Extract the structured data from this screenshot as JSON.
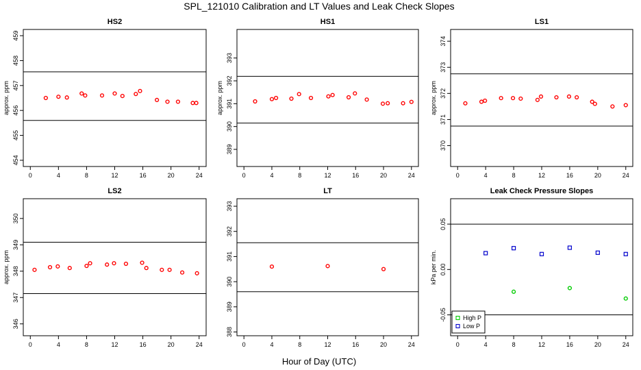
{
  "title": "SPL_121010  Calibration and LT Values and Leak Check Slopes",
  "xlabel": "Hour of Day (UTC)",
  "chart_data": [
    {
      "type": "scatter",
      "title": "HS2",
      "ylabel": "approx. ppm",
      "xlim": [
        -1,
        25
      ],
      "ylim": [
        453.75,
        459.25
      ],
      "xticks": [
        0,
        4,
        8,
        12,
        16,
        20,
        24
      ],
      "yticks": [
        454,
        455,
        456,
        457,
        458,
        459
      ],
      "hlines": [
        457.55,
        455.6
      ],
      "series": [
        {
          "color": "#ff0000",
          "marker": "circle",
          "x": [
            2.2,
            4.0,
            5.2,
            7.3,
            7.8,
            10.2,
            12.0,
            13.1,
            15.0,
            15.6,
            18.0,
            19.5,
            21.0,
            23.1,
            23.6
          ],
          "y": [
            456.5,
            456.55,
            456.52,
            456.68,
            456.6,
            456.6,
            456.68,
            456.58,
            456.66,
            456.78,
            456.42,
            456.35,
            456.35,
            456.3,
            456.3
          ]
        }
      ]
    },
    {
      "type": "scatter",
      "title": "HS1",
      "ylabel": "approx. ppm",
      "xlim": [
        -1,
        25
      ],
      "ylim": [
        388.25,
        394.25
      ],
      "xticks": [
        0,
        4,
        8,
        12,
        16,
        20,
        24
      ],
      "yticks": [
        389,
        390,
        391,
        392,
        393
      ],
      "hlines": [
        392.2,
        390.15
      ],
      "series": [
        {
          "color": "#ff0000",
          "marker": "circle",
          "x": [
            1.6,
            4.0,
            4.6,
            6.8,
            7.9,
            9.6,
            12.1,
            12.7,
            15.0,
            15.9,
            17.6,
            19.9,
            20.6,
            22.8,
            24.0
          ],
          "y": [
            391.1,
            391.2,
            391.25,
            391.22,
            391.42,
            391.25,
            391.32,
            391.38,
            391.28,
            391.45,
            391.18,
            391.0,
            391.02,
            391.02,
            391.08
          ]
        }
      ]
    },
    {
      "type": "scatter",
      "title": "LS1",
      "ylabel": "approx. ppm",
      "xlim": [
        -1,
        25
      ],
      "ylim": [
        369.2,
        374.45
      ],
      "xticks": [
        0,
        4,
        8,
        12,
        16,
        20,
        24
      ],
      "yticks": [
        370,
        371,
        372,
        373,
        374
      ],
      "hlines": [
        372.75,
        370.75
      ],
      "series": [
        {
          "color": "#ff0000",
          "marker": "circle",
          "x": [
            1.1,
            3.4,
            3.9,
            6.2,
            7.9,
            9.0,
            11.4,
            11.9,
            14.1,
            15.9,
            17.0,
            19.2,
            19.6,
            22.1,
            24.0
          ],
          "y": [
            371.62,
            371.68,
            371.72,
            371.82,
            371.82,
            371.8,
            371.75,
            371.88,
            371.85,
            371.88,
            371.85,
            371.68,
            371.6,
            371.5,
            371.55
          ]
        }
      ]
    },
    {
      "type": "scatter",
      "title": "LS2",
      "ylabel": "approx. ppm",
      "xlim": [
        -1,
        25
      ],
      "ylim": [
        345.55,
        350.75
      ],
      "xticks": [
        0,
        4,
        8,
        12,
        16,
        20,
        24
      ],
      "yticks": [
        346,
        347,
        348,
        349,
        350
      ],
      "hlines": [
        349.1,
        347.15
      ],
      "series": [
        {
          "color": "#ff0000",
          "marker": "circle",
          "x": [
            0.6,
            2.8,
            3.9,
            5.6,
            8.0,
            8.5,
            10.9,
            11.9,
            13.6,
            15.9,
            16.5,
            18.7,
            19.8,
            21.6,
            23.7
          ],
          "y": [
            348.05,
            348.15,
            348.18,
            348.12,
            348.2,
            348.3,
            348.25,
            348.3,
            348.28,
            348.32,
            348.12,
            348.05,
            348.05,
            347.95,
            347.92
          ]
        }
      ]
    },
    {
      "type": "scatter",
      "title": "LT",
      "ylabel": "",
      "xlim": [
        -1,
        25
      ],
      "ylim": [
        387.85,
        393.3
      ],
      "xticks": [
        0,
        4,
        8,
        12,
        16,
        20,
        24
      ],
      "yticks": [
        388,
        389,
        390,
        391,
        392,
        393
      ],
      "hlines": [
        391.55,
        389.6
      ],
      "series": [
        {
          "color": "#ff0000",
          "marker": "circle",
          "x": [
            4.0,
            12.0,
            20.0
          ],
          "y": [
            390.6,
            390.62,
            390.5
          ]
        }
      ]
    },
    {
      "type": "scatter",
      "title": "Leak Check Pressure Slopes",
      "ylabel": "kPa per min.",
      "xlim": [
        -1,
        25
      ],
      "ylim": [
        -0.073,
        0.078
      ],
      "xticks": [
        0,
        4,
        8,
        12,
        16,
        20,
        24
      ],
      "yticks": [
        -0.05,
        0.0,
        0.05
      ],
      "ytick_labels": [
        "-0.05",
        "0.00",
        "0.05"
      ],
      "hlines": [
        0.05,
        -0.05
      ],
      "legend": {
        "placement": "bottom-left"
      },
      "series": [
        {
          "name": "High P",
          "color": "#00cc00",
          "marker": "circle",
          "x": [
            8,
            16,
            24
          ],
          "y": [
            -0.0245,
            -0.0205,
            -0.032
          ]
        },
        {
          "name": "Low P",
          "color": "#0000cc",
          "marker": "square",
          "x": [
            4,
            8,
            12,
            16,
            20,
            24
          ],
          "y": [
            0.018,
            0.0235,
            0.017,
            0.024,
            0.0185,
            0.017
          ]
        }
      ]
    }
  ]
}
